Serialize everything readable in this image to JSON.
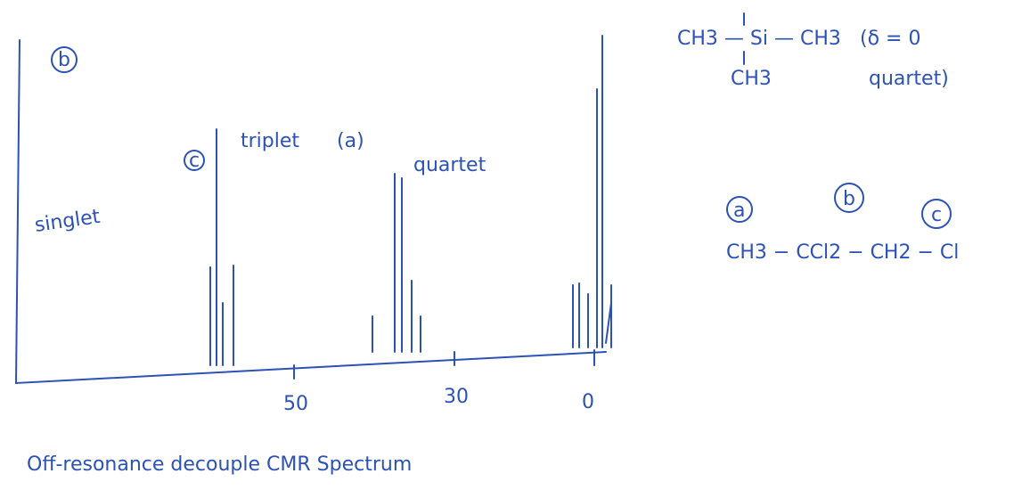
{
  "spectrum": {
    "corner_label": "b",
    "peak_labels": {
      "singlet": "singlet",
      "c_mark": "c",
      "triplet": "triplet",
      "a_mark": "(a)",
      "quartet": "quartet"
    },
    "axis_labels": [
      "50",
      "30",
      "0"
    ],
    "caption": "Off-resonance decouple CMR Spectrum"
  },
  "notes": {
    "tms": {
      "top": "CH3 — Si — CH3",
      "bottom": "CH3",
      "shift": "(δ = 0",
      "multiplicity": "quartet)"
    },
    "compound": {
      "marks": [
        "a",
        "b",
        "c"
      ],
      "formula": "CH3 − CCl2 − CH2 − Cl"
    }
  }
}
